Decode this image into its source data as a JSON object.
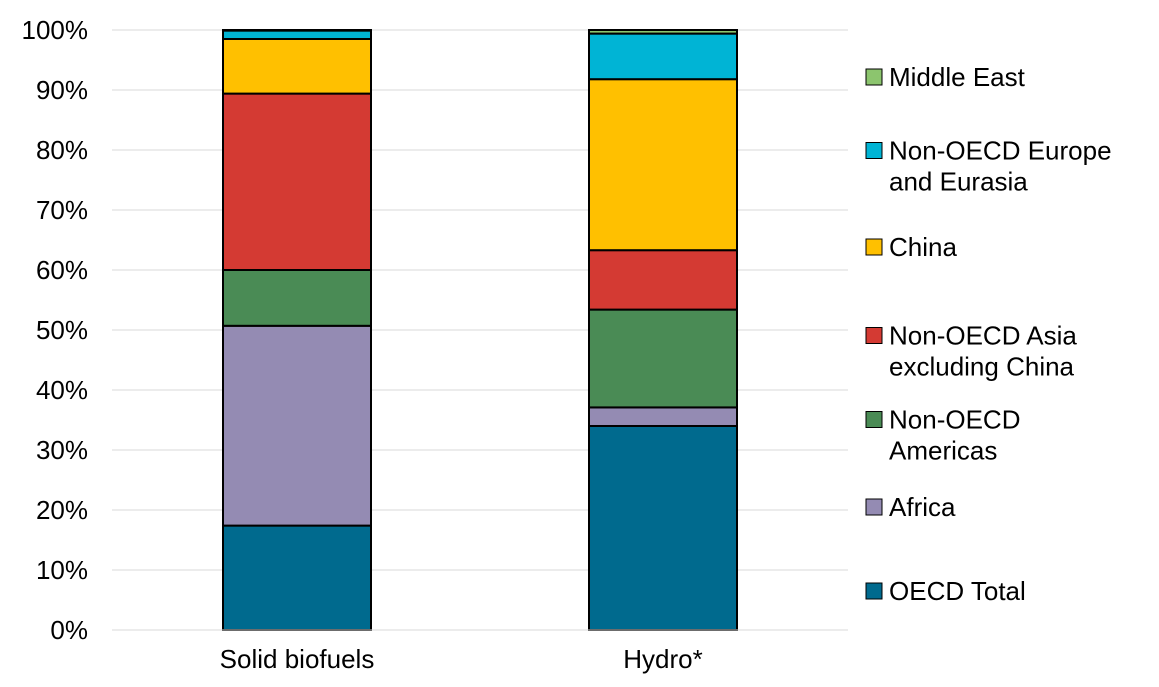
{
  "chart_data": {
    "type": "bar",
    "stacked": true,
    "percent": true,
    "title": "",
    "xlabel": "",
    "ylabel": "",
    "ylim": [
      0,
      100
    ],
    "y_ticks": [
      "0%",
      "10%",
      "20%",
      "30%",
      "40%",
      "50%",
      "60%",
      "70%",
      "80%",
      "90%",
      "100%"
    ],
    "grid": true,
    "legend_position": "right",
    "categories": [
      "Solid biofuels",
      "Hydro*"
    ],
    "series": [
      {
        "name": "OECD Total",
        "color": "#006a8e",
        "values": [
          17.4,
          34.0
        ]
      },
      {
        "name": "Africa",
        "color": "#948bb3",
        "values": [
          33.3,
          3.1
        ]
      },
      {
        "name": "Non-OECD Americas",
        "color": "#4a8b55",
        "values": [
          9.3,
          16.3
        ]
      },
      {
        "name": "Non-OECD Asia excluding China",
        "color": "#d43a33",
        "values": [
          29.4,
          9.9
        ]
      },
      {
        "name": "China",
        "color": "#ffc000",
        "values": [
          9.1,
          28.5
        ]
      },
      {
        "name": "Non-OECD Europe and Eurasia",
        "color": "#00b4d5",
        "values": [
          1.4,
          7.6
        ]
      },
      {
        "name": "Middle East",
        "color": "#8cc56e",
        "values": [
          0.1,
          0.6
        ]
      }
    ],
    "legend_order": [
      "Middle East",
      "Non-OECD Europe and Eurasia",
      "China",
      "Non-OECD Asia excluding China",
      "Non-OECD Americas",
      "Africa",
      "OECD Total"
    ],
    "legend_lines": {
      "Middle East": [
        "Middle East"
      ],
      "Non-OECD Europe and Eurasia": [
        "Non-OECD Europe",
        "and Eurasia"
      ],
      "China": [
        "China"
      ],
      "Non-OECD Asia excluding China": [
        "Non-OECD Asia",
        "excluding China"
      ],
      "Non-OECD Americas": [
        "Non-OECD",
        "Americas"
      ],
      "Africa": [
        "Africa"
      ],
      "OECD Total": [
        "OECD Total"
      ]
    }
  }
}
